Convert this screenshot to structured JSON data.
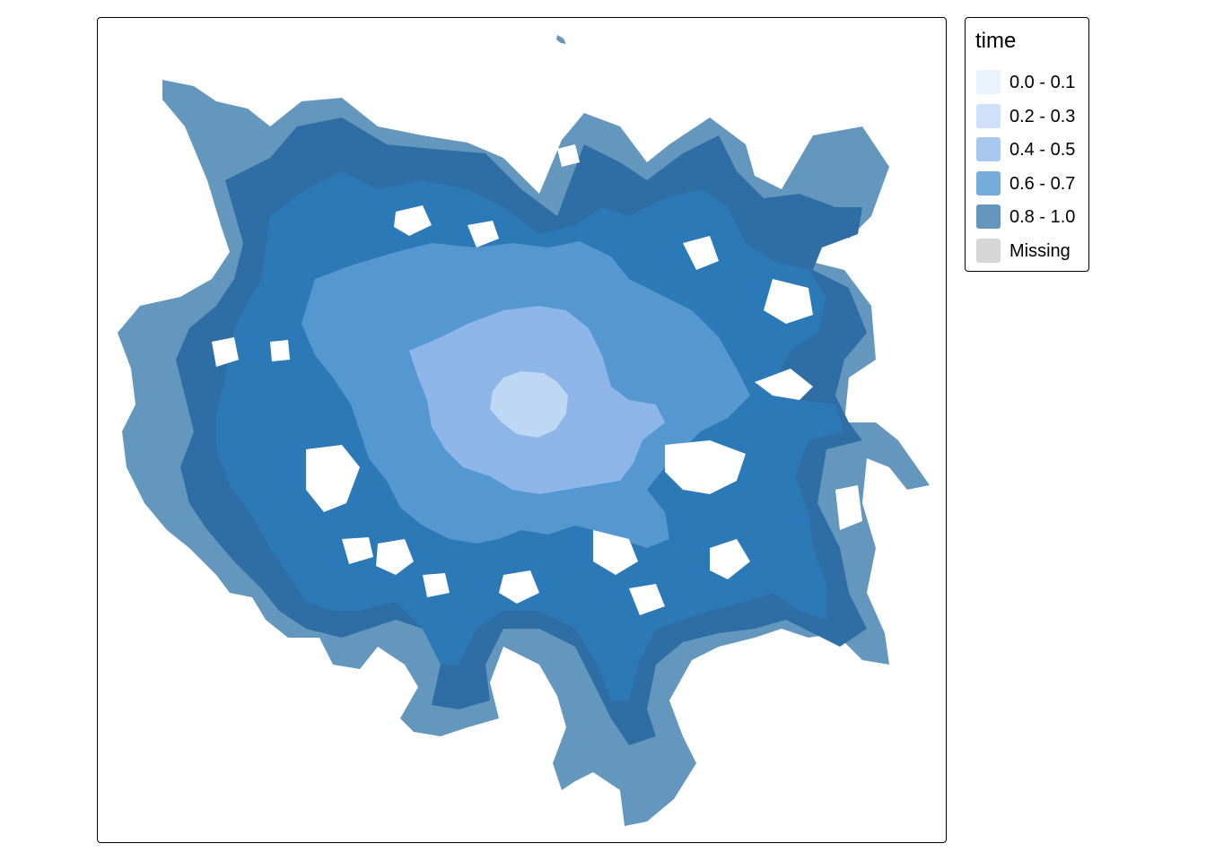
{
  "legend": {
    "title": "time",
    "items": [
      {
        "label": "0.0 - 0.1",
        "color": "#eaf2ff"
      },
      {
        "label": "0.2 - 0.3",
        "color": "#cfe0fa"
      },
      {
        "label": "0.4 - 0.5",
        "color": "#a9c8ee"
      },
      {
        "label": "0.6 - 0.7",
        "color": "#74acdb"
      },
      {
        "label": "0.8 - 1.0",
        "color": "#6497bd"
      },
      {
        "label": "Missing",
        "color": "#d6d6d6"
      }
    ]
  },
  "map": {
    "background": "#ffffff",
    "fill_colors": {
      "center": "#bed8f3",
      "inner": "#8db5e7",
      "mid": "#5597d0",
      "outer": "#2b79b7",
      "fringe": "#2f6ea5",
      "edge": "#6497bd"
    }
  }
}
